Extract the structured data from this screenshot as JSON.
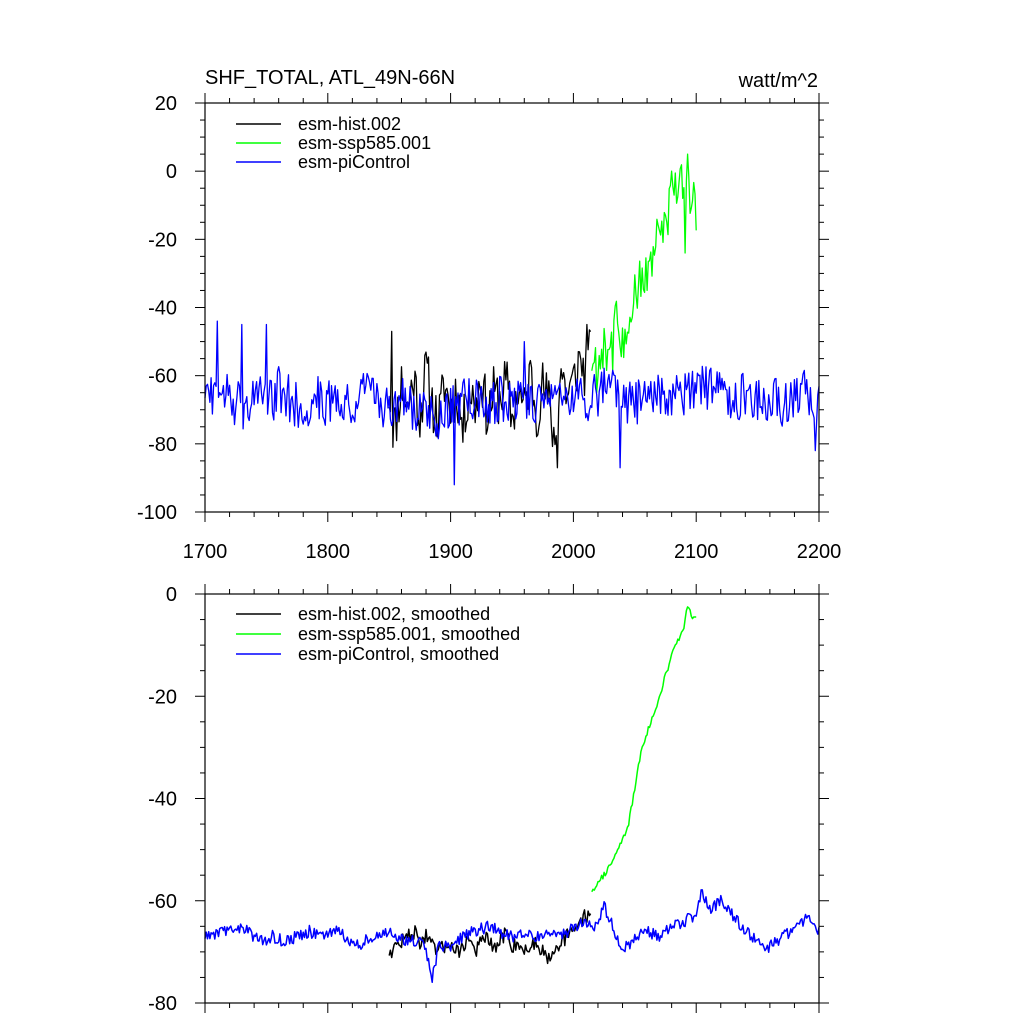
{
  "chart_data": [
    {
      "type": "line",
      "title": "SHF_TOTAL, ATL_49N-66N",
      "units": "watt/m^2",
      "xlim": [
        1700,
        2200
      ],
      "ylim": [
        -100,
        20
      ],
      "x_major_ticks": [
        1700,
        1800,
        1900,
        2000,
        2100,
        2200
      ],
      "y_major_ticks": [
        20,
        0,
        -20,
        -40,
        -60,
        -80,
        -100
      ],
      "legend_position": "top-left",
      "series": [
        {
          "name": "esm-hist.002",
          "color": "#000000",
          "x_range": [
            1850,
            2014
          ],
          "points": [
            [
              1850,
              -65
            ],
            [
              1855,
              -75
            ],
            [
              1860,
              -62
            ],
            [
              1865,
              -70
            ],
            [
              1870,
              -60
            ],
            [
              1875,
              -72
            ],
            [
              1880,
              -58
            ],
            [
              1885,
              -68
            ],
            [
              1890,
              -74
            ],
            [
              1895,
              -62
            ],
            [
              1900,
              -70
            ],
            [
              1905,
              -64
            ],
            [
              1910,
              -76
            ],
            [
              1915,
              -63
            ],
            [
              1920,
              -69
            ],
            [
              1925,
              -60
            ],
            [
              1930,
              -72
            ],
            [
              1935,
              -65
            ],
            [
              1940,
              -67
            ],
            [
              1945,
              -61
            ],
            [
              1950,
              -73
            ],
            [
              1955,
              -64
            ],
            [
              1960,
              -70
            ],
            [
              1965,
              -59
            ],
            [
              1970,
              -71
            ],
            [
              1975,
              -63
            ],
            [
              1980,
              -68
            ],
            [
              1985,
              -80
            ],
            [
              1990,
              -58
            ],
            [
              1995,
              -66
            ],
            [
              2000,
              -62
            ],
            [
              2005,
              -55
            ],
            [
              2010,
              -60
            ],
            [
              2014,
              -52
            ]
          ],
          "extremes": [
            [
              1852,
              -47
            ],
            [
              1853,
              -81
            ],
            [
              1987,
              -87
            ],
            [
              2011,
              -45
            ]
          ]
        },
        {
          "name": "esm-ssp585.001",
          "color": "#00ff00",
          "x_range": [
            2015,
            2100
          ],
          "points": [
            [
              2015,
              -55
            ],
            [
              2020,
              -58
            ],
            [
              2025,
              -48
            ],
            [
              2030,
              -55
            ],
            [
              2035,
              -45
            ],
            [
              2040,
              -50
            ],
            [
              2045,
              -42
            ],
            [
              2050,
              -38
            ],
            [
              2055,
              -33
            ],
            [
              2060,
              -28
            ],
            [
              2065,
              -25
            ],
            [
              2070,
              -20
            ],
            [
              2075,
              -15
            ],
            [
              2080,
              -8
            ],
            [
              2085,
              -5
            ],
            [
              2090,
              -2
            ],
            [
              2092,
              4
            ],
            [
              2095,
              -8
            ],
            [
              2100,
              -10
            ]
          ],
          "extremes": [
            [
              2093,
              5
            ],
            [
              2091,
              -24
            ]
          ]
        },
        {
          "name": "esm-piControl",
          "color": "#0000ff",
          "x_range": [
            1700,
            2200
          ],
          "points": [
            [
              1700,
              -64
            ],
            [
              1710,
              -68
            ],
            [
              1720,
              -66
            ],
            [
              1730,
              -70
            ],
            [
              1740,
              -65
            ],
            [
              1750,
              -69
            ],
            [
              1760,
              -64
            ],
            [
              1770,
              -67
            ],
            [
              1780,
              -70
            ],
            [
              1790,
              -66
            ],
            [
              1800,
              -68
            ],
            [
              1810,
              -65
            ],
            [
              1820,
              -69
            ],
            [
              1830,
              -64
            ],
            [
              1840,
              -68
            ],
            [
              1850,
              -71
            ],
            [
              1860,
              -67
            ],
            [
              1870,
              -70
            ],
            [
              1880,
              -68
            ],
            [
              1890,
              -73
            ],
            [
              1900,
              -70
            ],
            [
              1910,
              -67
            ],
            [
              1920,
              -66
            ],
            [
              1930,
              -70
            ],
            [
              1940,
              -67
            ],
            [
              1950,
              -66
            ],
            [
              1960,
              -68
            ],
            [
              1970,
              -67
            ],
            [
              1980,
              -65
            ],
            [
              1990,
              -66
            ],
            [
              2000,
              -64
            ],
            [
              2010,
              -67
            ],
            [
              2020,
              -65
            ],
            [
              2030,
              -64
            ],
            [
              2040,
              -69
            ],
            [
              2050,
              -68
            ],
            [
              2060,
              -67
            ],
            [
              2070,
              -66
            ],
            [
              2080,
              -65
            ],
            [
              2090,
              -66
            ],
            [
              2100,
              -64
            ],
            [
              2110,
              -63
            ],
            [
              2120,
              -66
            ],
            [
              2130,
              -67
            ],
            [
              2140,
              -65
            ],
            [
              2150,
              -68
            ],
            [
              2160,
              -66
            ],
            [
              2170,
              -69
            ],
            [
              2180,
              -67
            ],
            [
              2190,
              -65
            ],
            [
              2200,
              -68
            ]
          ],
          "extremes": [
            [
              1710,
              -44
            ],
            [
              1730,
              -45
            ],
            [
              1750,
              -45
            ],
            [
              1903,
              -92
            ],
            [
              1960,
              -50
            ],
            [
              2038,
              -87
            ],
            [
              2197,
              -82
            ]
          ],
          "noise_amplitude": 7
        }
      ]
    },
    {
      "type": "line",
      "xlim": [
        1700,
        2200
      ],
      "ylim": [
        -80,
        0
      ],
      "x_major_ticks": [
        1700,
        1800,
        1900,
        2000,
        2100,
        2200
      ],
      "y_major_ticks": [
        0,
        -20,
        -40,
        -60,
        -80
      ],
      "legend_position": "top-left",
      "series": [
        {
          "name": "esm-hist.002, smoothed",
          "color": "#000000",
          "x_range": [
            1850,
            2014
          ],
          "points": [
            [
              1850,
              -70
            ],
            [
              1855,
              -69
            ],
            [
              1860,
              -68
            ],
            [
              1865,
              -67
            ],
            [
              1870,
              -66
            ],
            [
              1875,
              -68
            ],
            [
              1880,
              -67
            ],
            [
              1885,
              -69
            ],
            [
              1890,
              -70
            ],
            [
              1895,
              -69
            ],
            [
              1900,
              -68
            ],
            [
              1905,
              -70
            ],
            [
              1910,
              -69
            ],
            [
              1915,
              -67
            ],
            [
              1920,
              -70
            ],
            [
              1925,
              -68
            ],
            [
              1930,
              -67
            ],
            [
              1935,
              -70
            ],
            [
              1940,
              -68
            ],
            [
              1945,
              -66
            ],
            [
              1950,
              -69
            ],
            [
              1955,
              -68
            ],
            [
              1960,
              -70
            ],
            [
              1965,
              -69
            ],
            [
              1970,
              -68
            ],
            [
              1975,
              -70
            ],
            [
              1980,
              -71
            ],
            [
              1985,
              -69
            ],
            [
              1990,
              -68
            ],
            [
              1995,
              -67
            ],
            [
              2000,
              -66
            ],
            [
              2005,
              -64
            ],
            [
              2010,
              -63
            ],
            [
              2014,
              -62
            ]
          ],
          "noise_amplitude": 1.5
        },
        {
          "name": "esm-ssp585.001, smoothed",
          "color": "#00ff00",
          "x_range": [
            2015,
            2100
          ],
          "points": [
            [
              2016,
              -58
            ],
            [
              2020,
              -56
            ],
            [
              2025,
              -55
            ],
            [
              2030,
              -53
            ],
            [
              2035,
              -51
            ],
            [
              2040,
              -48
            ],
            [
              2045,
              -45
            ],
            [
              2050,
              -38
            ],
            [
              2055,
              -31
            ],
            [
              2060,
              -27
            ],
            [
              2065,
              -24
            ],
            [
              2070,
              -20
            ],
            [
              2075,
              -16
            ],
            [
              2080,
              -12
            ],
            [
              2085,
              -9
            ],
            [
              2090,
              -7
            ],
            [
              2093,
              -2
            ],
            [
              2096,
              -4
            ],
            [
              2100,
              -5
            ]
          ],
          "noise_amplitude": 0.6
        },
        {
          "name": "esm-piControl, smoothed",
          "color": "#0000ff",
          "x_range": [
            1700,
            2200
          ],
          "points": [
            [
              1705,
              -67
            ],
            [
              1715,
              -66
            ],
            [
              1725,
              -65
            ],
            [
              1735,
              -66
            ],
            [
              1745,
              -68
            ],
            [
              1755,
              -67
            ],
            [
              1765,
              -68
            ],
            [
              1775,
              -67
            ],
            [
              1785,
              -66
            ],
            [
              1795,
              -67
            ],
            [
              1805,
              -66
            ],
            [
              1815,
              -67
            ],
            [
              1825,
              -69
            ],
            [
              1835,
              -67
            ],
            [
              1845,
              -66
            ],
            [
              1855,
              -67
            ],
            [
              1865,
              -68
            ],
            [
              1875,
              -68
            ],
            [
              1880,
              -70
            ],
            [
              1885,
              -75
            ],
            [
              1890,
              -69
            ],
            [
              1900,
              -69
            ],
            [
              1910,
              -67
            ],
            [
              1920,
              -66
            ],
            [
              1930,
              -65
            ],
            [
              1940,
              -66
            ],
            [
              1950,
              -67
            ],
            [
              1960,
              -66
            ],
            [
              1970,
              -67
            ],
            [
              1980,
              -66
            ],
            [
              1990,
              -67
            ],
            [
              2000,
              -65
            ],
            [
              2010,
              -64
            ],
            [
              2020,
              -65
            ],
            [
              2025,
              -61
            ],
            [
              2030,
              -64
            ],
            [
              2040,
              -70
            ],
            [
              2050,
              -67
            ],
            [
              2060,
              -66
            ],
            [
              2070,
              -67
            ],
            [
              2080,
              -65
            ],
            [
              2090,
              -64
            ],
            [
              2100,
              -63
            ],
            [
              2105,
              -58
            ],
            [
              2110,
              -62
            ],
            [
              2120,
              -60
            ],
            [
              2130,
              -63
            ],
            [
              2140,
              -66
            ],
            [
              2150,
              -68
            ],
            [
              2160,
              -69
            ],
            [
              2170,
              -67
            ],
            [
              2180,
              -66
            ],
            [
              2190,
              -63
            ],
            [
              2197,
              -66
            ]
          ],
          "noise_amplitude": 1.2
        }
      ]
    }
  ]
}
